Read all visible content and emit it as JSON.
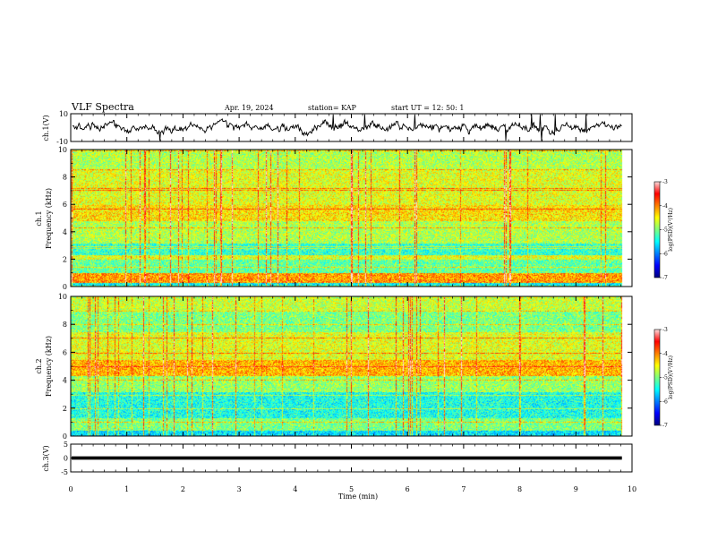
{
  "header": {
    "title": "VLF Spectra",
    "date": "Apr. 19, 2024",
    "station": "station= KAP",
    "start": "start  UT  =   12: 50: 1"
  },
  "chart_data": [
    {
      "type": "line",
      "panel": "ch1-waveform",
      "ylabel": "ch.1(V)",
      "ylim": [
        -10,
        10
      ],
      "yticks": [
        "10",
        "-10"
      ],
      "x_range_min": [
        0,
        9.82
      ],
      "style": {
        "color": "#000000",
        "mean_level": 0,
        "typical_amplitude_v": 3,
        "spikes_to_limits": true
      }
    },
    {
      "type": "heatmap",
      "panel": "ch1-spectrogram",
      "ylabel": "Frequency (kHz)",
      "channel_label": "ch.1",
      "ylim": [
        0,
        10
      ],
      "yticks": [
        "0",
        "2",
        "4",
        "6",
        "8",
        "10"
      ],
      "x_range_min": [
        0,
        9.82
      ],
      "colorbar": {
        "label": "log(PSD)(V²/Hz)",
        "range": [
          -7,
          -3
        ],
        "ticks": [
          "-3",
          "-4",
          "-5",
          "-6",
          "-7"
        ],
        "colors": [
          "#00007f",
          "#0000ff",
          "#007fff",
          "#00ffff",
          "#7fff7f",
          "#ffff00",
          "#ff7f00",
          "#ff0000",
          "#ffdede"
        ]
      },
      "bands": [
        {
          "f": [
            0,
            0.3
          ],
          "level": -5.5
        },
        {
          "f": [
            0.3,
            1
          ],
          "level": -4.1
        },
        {
          "f": [
            1,
            2
          ],
          "level": -5.1
        },
        {
          "f": [
            2,
            2.3
          ],
          "level": -4.6
        },
        {
          "f": [
            2.3,
            3.2
          ],
          "level": -5.3
        },
        {
          "f": [
            3.2,
            4.8
          ],
          "level": -4.8
        },
        {
          "f": [
            4.8,
            6
          ],
          "level": -4.4
        },
        {
          "f": [
            6,
            8.5
          ],
          "level": -4.6
        },
        {
          "f": [
            8.5,
            10
          ],
          "level": -4.8
        }
      ]
    },
    {
      "type": "heatmap",
      "panel": "ch2-spectrogram",
      "ylabel": "Frequency (kHz)",
      "channel_label": "ch.2",
      "ylim": [
        0,
        10
      ],
      "yticks": [
        "0",
        "2",
        "4",
        "6",
        "8",
        "10"
      ],
      "x_range_min": [
        0,
        9.82
      ],
      "colorbar": {
        "label": "log(PSD)(V²/Hz)",
        "range": [
          -7,
          -3
        ],
        "ticks": [
          "-3",
          "-4",
          "-5",
          "-6",
          "-7"
        ],
        "colors": [
          "#00007f",
          "#0000ff",
          "#007fff",
          "#00ffff",
          "#7fff7f",
          "#ffff00",
          "#ff7f00",
          "#ff0000",
          "#ffdede"
        ]
      },
      "bands": [
        {
          "f": [
            0,
            0.4
          ],
          "level": -5.6
        },
        {
          "f": [
            0.4,
            1.3
          ],
          "level": -5.0
        },
        {
          "f": [
            1.3,
            3.2
          ],
          "level": -5.4
        },
        {
          "f": [
            3.2,
            4.3
          ],
          "level": -4.9
        },
        {
          "f": [
            4.3,
            5.5
          ],
          "level": -4.2
        },
        {
          "f": [
            5.5,
            7.5
          ],
          "level": -4.6
        },
        {
          "f": [
            7.5,
            9
          ],
          "level": -5.0
        },
        {
          "f": [
            9,
            10
          ],
          "level": -4.7
        }
      ]
    },
    {
      "type": "line",
      "panel": "ch3-waveform",
      "ylabel": "ch.3(V)",
      "ylim": [
        -5,
        5
      ],
      "yticks": [
        "5",
        "0",
        "-5"
      ],
      "x_range_min": [
        0,
        9.82
      ],
      "style": {
        "color": "#000000",
        "mean_level": 0,
        "band_half_width_v": 0.6
      }
    }
  ],
  "xaxis": {
    "label": "Time (min)",
    "range": [
      0,
      10
    ],
    "ticks": [
      "0",
      "1",
      "2",
      "3",
      "4",
      "5",
      "6",
      "7",
      "8",
      "9",
      "10"
    ]
  }
}
